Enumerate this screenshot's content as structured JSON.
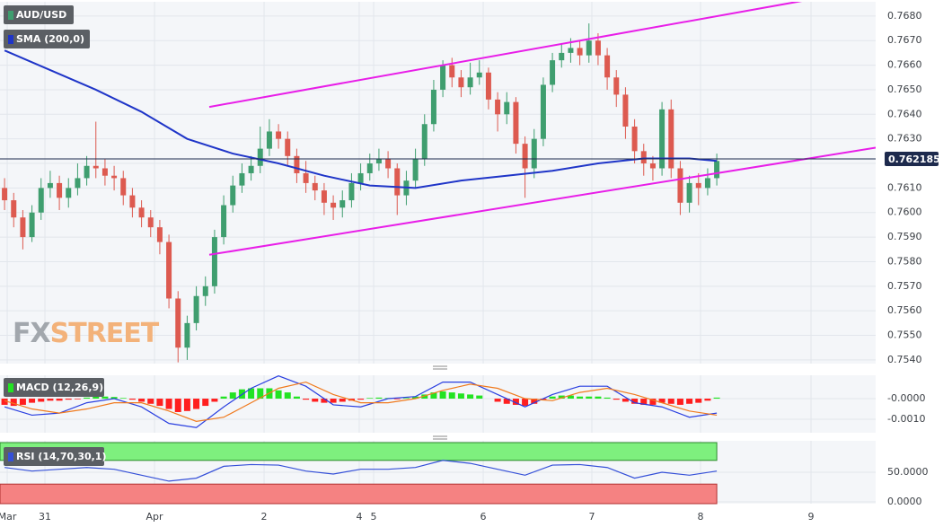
{
  "chart_data": [
    {
      "type": "candlestick",
      "title": "AUD/USD",
      "xlim": [
        -0.5,
        95.4
      ],
      "xticks": [
        {
          "value": 0.29,
          "label": "Mar"
        },
        {
          "value": 4.42,
          "label": "31"
        },
        {
          "value": 16.42,
          "label": "Apr"
        },
        {
          "value": 28.42,
          "label": "2"
        },
        {
          "value": 38.84,
          "label": "4"
        },
        {
          "value": 40.42,
          "label": "5"
        },
        {
          "value": 52.42,
          "label": "6"
        },
        {
          "value": 64.32,
          "label": "7"
        },
        {
          "value": 76.22,
          "label": "8"
        },
        {
          "value": 88.32,
          "label": "9"
        }
      ],
      "ylim": [
        0.75385,
        0.76858
      ],
      "yticks": [
        {
          "value": 0.754,
          "label": "0.7540"
        },
        {
          "value": 0.755,
          "label": "0.7550"
        },
        {
          "value": 0.756,
          "label": "0.7560"
        },
        {
          "value": 0.757,
          "label": "0.7570"
        },
        {
          "value": 0.758,
          "label": "0.7580"
        },
        {
          "value": 0.759,
          "label": "0.7590"
        },
        {
          "value": 0.76,
          "label": "0.7600"
        },
        {
          "value": 0.761,
          "label": "0.7610"
        },
        {
          "value": 0.762,
          "label": "0.7620"
        },
        {
          "value": 0.763,
          "label": "0.7630"
        },
        {
          "value": 0.764,
          "label": "0.7640"
        },
        {
          "value": 0.765,
          "label": "0.7650"
        },
        {
          "value": 0.766,
          "label": "0.7660"
        },
        {
          "value": 0.767,
          "label": "0.7670"
        },
        {
          "value": 0.768,
          "label": "0.7680"
        }
      ],
      "grid": true,
      "up_color": "#3f9e6f",
      "down_color": "#dd5a50",
      "x": [
        0,
        1,
        2,
        3,
        4,
        5,
        6,
        7,
        8,
        9,
        10,
        11,
        12,
        13,
        14,
        15,
        16,
        17,
        18,
        19,
        20,
        21,
        22,
        23,
        24,
        25,
        26,
        27,
        28,
        29,
        30,
        31,
        32,
        33,
        34,
        35,
        36,
        37,
        38,
        39,
        40,
        41,
        42,
        43,
        44,
        45,
        46,
        47,
        48,
        49,
        50,
        51,
        52,
        53,
        54,
        55,
        56,
        57,
        58,
        59,
        60,
        61,
        62,
        63,
        64,
        65,
        66,
        67,
        68,
        69,
        70,
        71,
        72,
        73,
        74,
        75,
        76,
        77,
        78
      ],
      "open": [
        0.761,
        0.7605,
        0.7598,
        0.759,
        0.76,
        0.761,
        0.7612,
        0.7606,
        0.761,
        0.7614,
        0.7619,
        0.7618,
        0.7615,
        0.7614,
        0.7607,
        0.7602,
        0.7598,
        0.7594,
        0.7588,
        0.7565,
        0.7545,
        0.7555,
        0.7566,
        0.757,
        0.759,
        0.7603,
        0.7611,
        0.7616,
        0.7619,
        0.7626,
        0.7633,
        0.763,
        0.7623,
        0.7616,
        0.7612,
        0.7609,
        0.7604,
        0.7602,
        0.7605,
        0.7612,
        0.7616,
        0.762,
        0.7622,
        0.7618,
        0.7607,
        0.7613,
        0.7622,
        0.7636,
        0.765,
        0.766,
        0.7655,
        0.7651,
        0.7655,
        0.7657,
        0.7646,
        0.764,
        0.7645,
        0.7628,
        0.7618,
        0.763,
        0.7652,
        0.7662,
        0.7665,
        0.7667,
        0.7664,
        0.767,
        0.7664,
        0.7655,
        0.7648,
        0.7635,
        0.7625,
        0.762,
        0.7618,
        0.7642,
        0.7618,
        0.7604,
        0.7612,
        0.761,
        0.7614
      ],
      "high": [
        0.7614,
        0.7608,
        0.7601,
        0.7603,
        0.7614,
        0.7617,
        0.7615,
        0.7614,
        0.762,
        0.7623,
        0.7637,
        0.7622,
        0.7619,
        0.7617,
        0.761,
        0.7605,
        0.7601,
        0.7597,
        0.7591,
        0.7568,
        0.7558,
        0.757,
        0.7574,
        0.7593,
        0.7607,
        0.7615,
        0.762,
        0.7623,
        0.7635,
        0.7638,
        0.7636,
        0.7633,
        0.7626,
        0.7621,
        0.7615,
        0.7612,
        0.7607,
        0.7609,
        0.7616,
        0.762,
        0.7624,
        0.7626,
        0.7625,
        0.762,
        0.7617,
        0.7626,
        0.764,
        0.7654,
        0.7662,
        0.7663,
        0.7658,
        0.7661,
        0.7662,
        0.7659,
        0.7649,
        0.7649,
        0.7647,
        0.7631,
        0.7634,
        0.7655,
        0.7665,
        0.7669,
        0.7671,
        0.767,
        0.7677,
        0.7673,
        0.7667,
        0.7658,
        0.7651,
        0.7638,
        0.7628,
        0.7623,
        0.7645,
        0.7646,
        0.7621,
        0.7615,
        0.7616,
        0.7618,
        0.7624
      ],
      "low": [
        0.7601,
        0.7594,
        0.7585,
        0.7588,
        0.7597,
        0.7606,
        0.7601,
        0.7602,
        0.7607,
        0.7611,
        0.7614,
        0.7611,
        0.7609,
        0.7603,
        0.7598,
        0.7594,
        0.759,
        0.7583,
        0.7561,
        0.7539,
        0.754,
        0.7552,
        0.7562,
        0.7567,
        0.7587,
        0.76,
        0.7608,
        0.7613,
        0.7616,
        0.7623,
        0.7626,
        0.7619,
        0.7612,
        0.7608,
        0.7605,
        0.7599,
        0.7597,
        0.7598,
        0.7602,
        0.7609,
        0.7613,
        0.7617,
        0.7614,
        0.7599,
        0.7603,
        0.761,
        0.7619,
        0.7633,
        0.7647,
        0.7651,
        0.7647,
        0.7648,
        0.7652,
        0.7642,
        0.7633,
        0.7636,
        0.7624,
        0.7606,
        0.7614,
        0.7627,
        0.7649,
        0.7659,
        0.7661,
        0.766,
        0.7661,
        0.766,
        0.765,
        0.7643,
        0.763,
        0.762,
        0.7615,
        0.7613,
        0.7615,
        0.7614,
        0.7599,
        0.76,
        0.7603,
        0.7607,
        0.7611
      ],
      "close": [
        0.7605,
        0.7598,
        0.759,
        0.76,
        0.761,
        0.7612,
        0.7606,
        0.761,
        0.7614,
        0.7619,
        0.7618,
        0.7615,
        0.7614,
        0.7607,
        0.7602,
        0.7598,
        0.7594,
        0.7588,
        0.7565,
        0.7545,
        0.7555,
        0.7566,
        0.757,
        0.759,
        0.7603,
        0.7611,
        0.7616,
        0.7619,
        0.7626,
        0.7633,
        0.763,
        0.7623,
        0.7616,
        0.7612,
        0.7609,
        0.7604,
        0.7602,
        0.7605,
        0.7612,
        0.7616,
        0.762,
        0.7622,
        0.7618,
        0.7607,
        0.7613,
        0.7622,
        0.7636,
        0.765,
        0.766,
        0.7655,
        0.7651,
        0.7655,
        0.7657,
        0.7646,
        0.764,
        0.7645,
        0.7628,
        0.7618,
        0.763,
        0.7652,
        0.7662,
        0.7665,
        0.7667,
        0.7664,
        0.767,
        0.7664,
        0.7655,
        0.7648,
        0.7635,
        0.7625,
        0.762,
        0.7618,
        0.7642,
        0.7618,
        0.7604,
        0.7612,
        0.761,
        0.7614,
        0.7621
      ],
      "series": [
        {
          "name": "SMA (200,0)",
          "color": "#1f35c8",
          "x": [
            0,
            5,
            10,
            15,
            20,
            25,
            30,
            35,
            40,
            45,
            50,
            55,
            60,
            65,
            70,
            75,
            78
          ],
          "values": [
            0.7666,
            0.7658,
            0.765,
            0.7641,
            0.763,
            0.7624,
            0.762,
            0.7615,
            0.7611,
            0.761,
            0.7613,
            0.7615,
            0.7617,
            0.762,
            0.7622,
            0.7622,
            0.7621
          ]
        }
      ],
      "trendlines": [
        {
          "x": [
            22.42,
            88.0
          ],
          "values": [
            0.7643,
            0.76866
          ]
        },
        {
          "x": [
            22.42,
            95.4
          ],
          "values": [
            0.75828,
            0.76264
          ]
        }
      ],
      "trendline_color": "#e81ee8",
      "last_price": 0.762185,
      "last_price_color": "#1d2a4d"
    },
    {
      "type": "macd",
      "title": "MACD (12,26,9)",
      "ylim": [
        -0.00165,
        0.00113
      ],
      "yticks": [
        {
          "value": 0,
          "label": "-0.0000"
        },
        {
          "value": -0.001,
          "label": "-0.0010"
        }
      ],
      "up_color": "#22e322",
      "down_color": "#ff1f1f",
      "x": [
        0,
        1,
        2,
        3,
        4,
        5,
        6,
        7,
        8,
        9,
        10,
        11,
        12,
        13,
        14,
        15,
        16,
        17,
        18,
        19,
        20,
        21,
        22,
        23,
        24,
        25,
        26,
        27,
        28,
        29,
        30,
        31,
        32,
        33,
        34,
        35,
        36,
        37,
        38,
        39,
        40,
        41,
        42,
        43,
        44,
        45,
        46,
        47,
        48,
        49,
        50,
        51,
        52,
        53,
        54,
        55,
        56,
        57,
        58,
        59,
        60,
        61,
        62,
        63,
        64,
        65,
        66,
        67,
        68,
        69,
        70,
        71,
        72,
        73,
        74,
        75,
        76,
        77,
        78
      ],
      "values": [
        -0.0003,
        -0.00035,
        -0.0003,
        -0.0002,
        -0.00015,
        -0.0001,
        -0.0001,
        -5e-05,
        -3e-05,
        5e-05,
        0.0001,
        0.0001,
        8e-05,
        3e-05,
        -5e-05,
        -0.00015,
        -0.00025,
        -0.00035,
        -0.0005,
        -0.00065,
        -0.0006,
        -0.0005,
        -0.00035,
        -0.00015,
        0.0001,
        0.0003,
        0.00045,
        0.0005,
        0.0005,
        0.0005,
        0.0004,
        0.0003,
        0.0001,
        -5e-05,
        -0.00015,
        -0.0002,
        -0.0002,
        -0.00015,
        -0.0001,
        -5e-05,
        3e-05,
        5e-05,
        3e-05,
        -3e-05,
        3e-05,
        0.0001,
        0.0002,
        0.0003,
        0.00035,
        0.0003,
        0.00025,
        0.0002,
        0.00015,
        0,
        -0.00015,
        -0.00025,
        -0.0003,
        -0.00035,
        -0.00025,
        -5e-05,
        0.0001,
        0.00015,
        0.00015,
        0.0001,
        0.0001,
        0.0001,
        5e-05,
        -5e-05,
        -0.00015,
        -0.00025,
        -0.0003,
        -0.0003,
        -0.0002,
        -0.00025,
        -0.0003,
        -0.00025,
        -0.0002,
        -0.0001,
        5e-05
      ],
      "series": [
        {
          "color": "#2a3fe0",
          "x": [
            0,
            3,
            6,
            9,
            12,
            15,
            18,
            21,
            24,
            27,
            30,
            33,
            36,
            39,
            42,
            45,
            48,
            51,
            54,
            57,
            60,
            63,
            66,
            69,
            72,
            75,
            78
          ],
          "values": [
            -0.0004,
            -0.0008,
            -0.0007,
            -0.0002,
            0,
            -0.0004,
            -0.0012,
            -0.0014,
            -0.0004,
            0.0005,
            0.0011,
            0.0006,
            -0.0003,
            -0.0004,
            0,
            0.0001,
            0.0008,
            0.0008,
            0.0002,
            -0.0004,
            0.0002,
            0.0006,
            0.0006,
            -0.0002,
            -0.0004,
            -0.0009,
            -0.0007
          ]
        },
        {
          "color": "#f07a1e",
          "x": [
            0,
            3,
            6,
            9,
            12,
            15,
            18,
            21,
            24,
            27,
            30,
            33,
            36,
            39,
            42,
            45,
            48,
            51,
            54,
            57,
            60,
            63,
            66,
            69,
            72,
            75,
            78
          ],
          "values": [
            -0.0001,
            -0.0005,
            -0.0007,
            -0.0005,
            -0.0002,
            -0.0002,
            -0.0006,
            -0.0011,
            -0.0009,
            -0.0002,
            0.0005,
            0.0008,
            0.0002,
            -0.0002,
            -0.0002,
            0,
            0.0004,
            0.0007,
            0.0005,
            0,
            -0.0001,
            0.0003,
            0.0005,
            0.0002,
            -0.0002,
            -0.0006,
            -0.0008
          ]
        }
      ]
    },
    {
      "type": "rsi",
      "title": "RSI (14,70,30,1)",
      "ylim": [
        -3,
        103
      ],
      "yticks": [
        {
          "value": 0,
          "label": "0.0000"
        },
        {
          "value": 50,
          "label": "50.0000"
        }
      ],
      "overbought": 70,
      "oversold": 30,
      "overbought_color": "#7ef07e",
      "oversold_color": "#f58282",
      "series": [
        {
          "color": "#3550d8",
          "x": [
            0,
            3,
            6,
            9,
            12,
            15,
            18,
            21,
            24,
            27,
            30,
            33,
            36,
            39,
            42,
            45,
            48,
            51,
            54,
            57,
            60,
            63,
            66,
            69,
            72,
            75,
            78
          ],
          "values": [
            58,
            52,
            55,
            58,
            55,
            45,
            35,
            40,
            60,
            63,
            62,
            52,
            47,
            55,
            55,
            58,
            70,
            65,
            55,
            45,
            62,
            63,
            58,
            40,
            50,
            45,
            52
          ]
        }
      ]
    }
  ],
  "watermark": [
    "FX",
    "STREET"
  ]
}
